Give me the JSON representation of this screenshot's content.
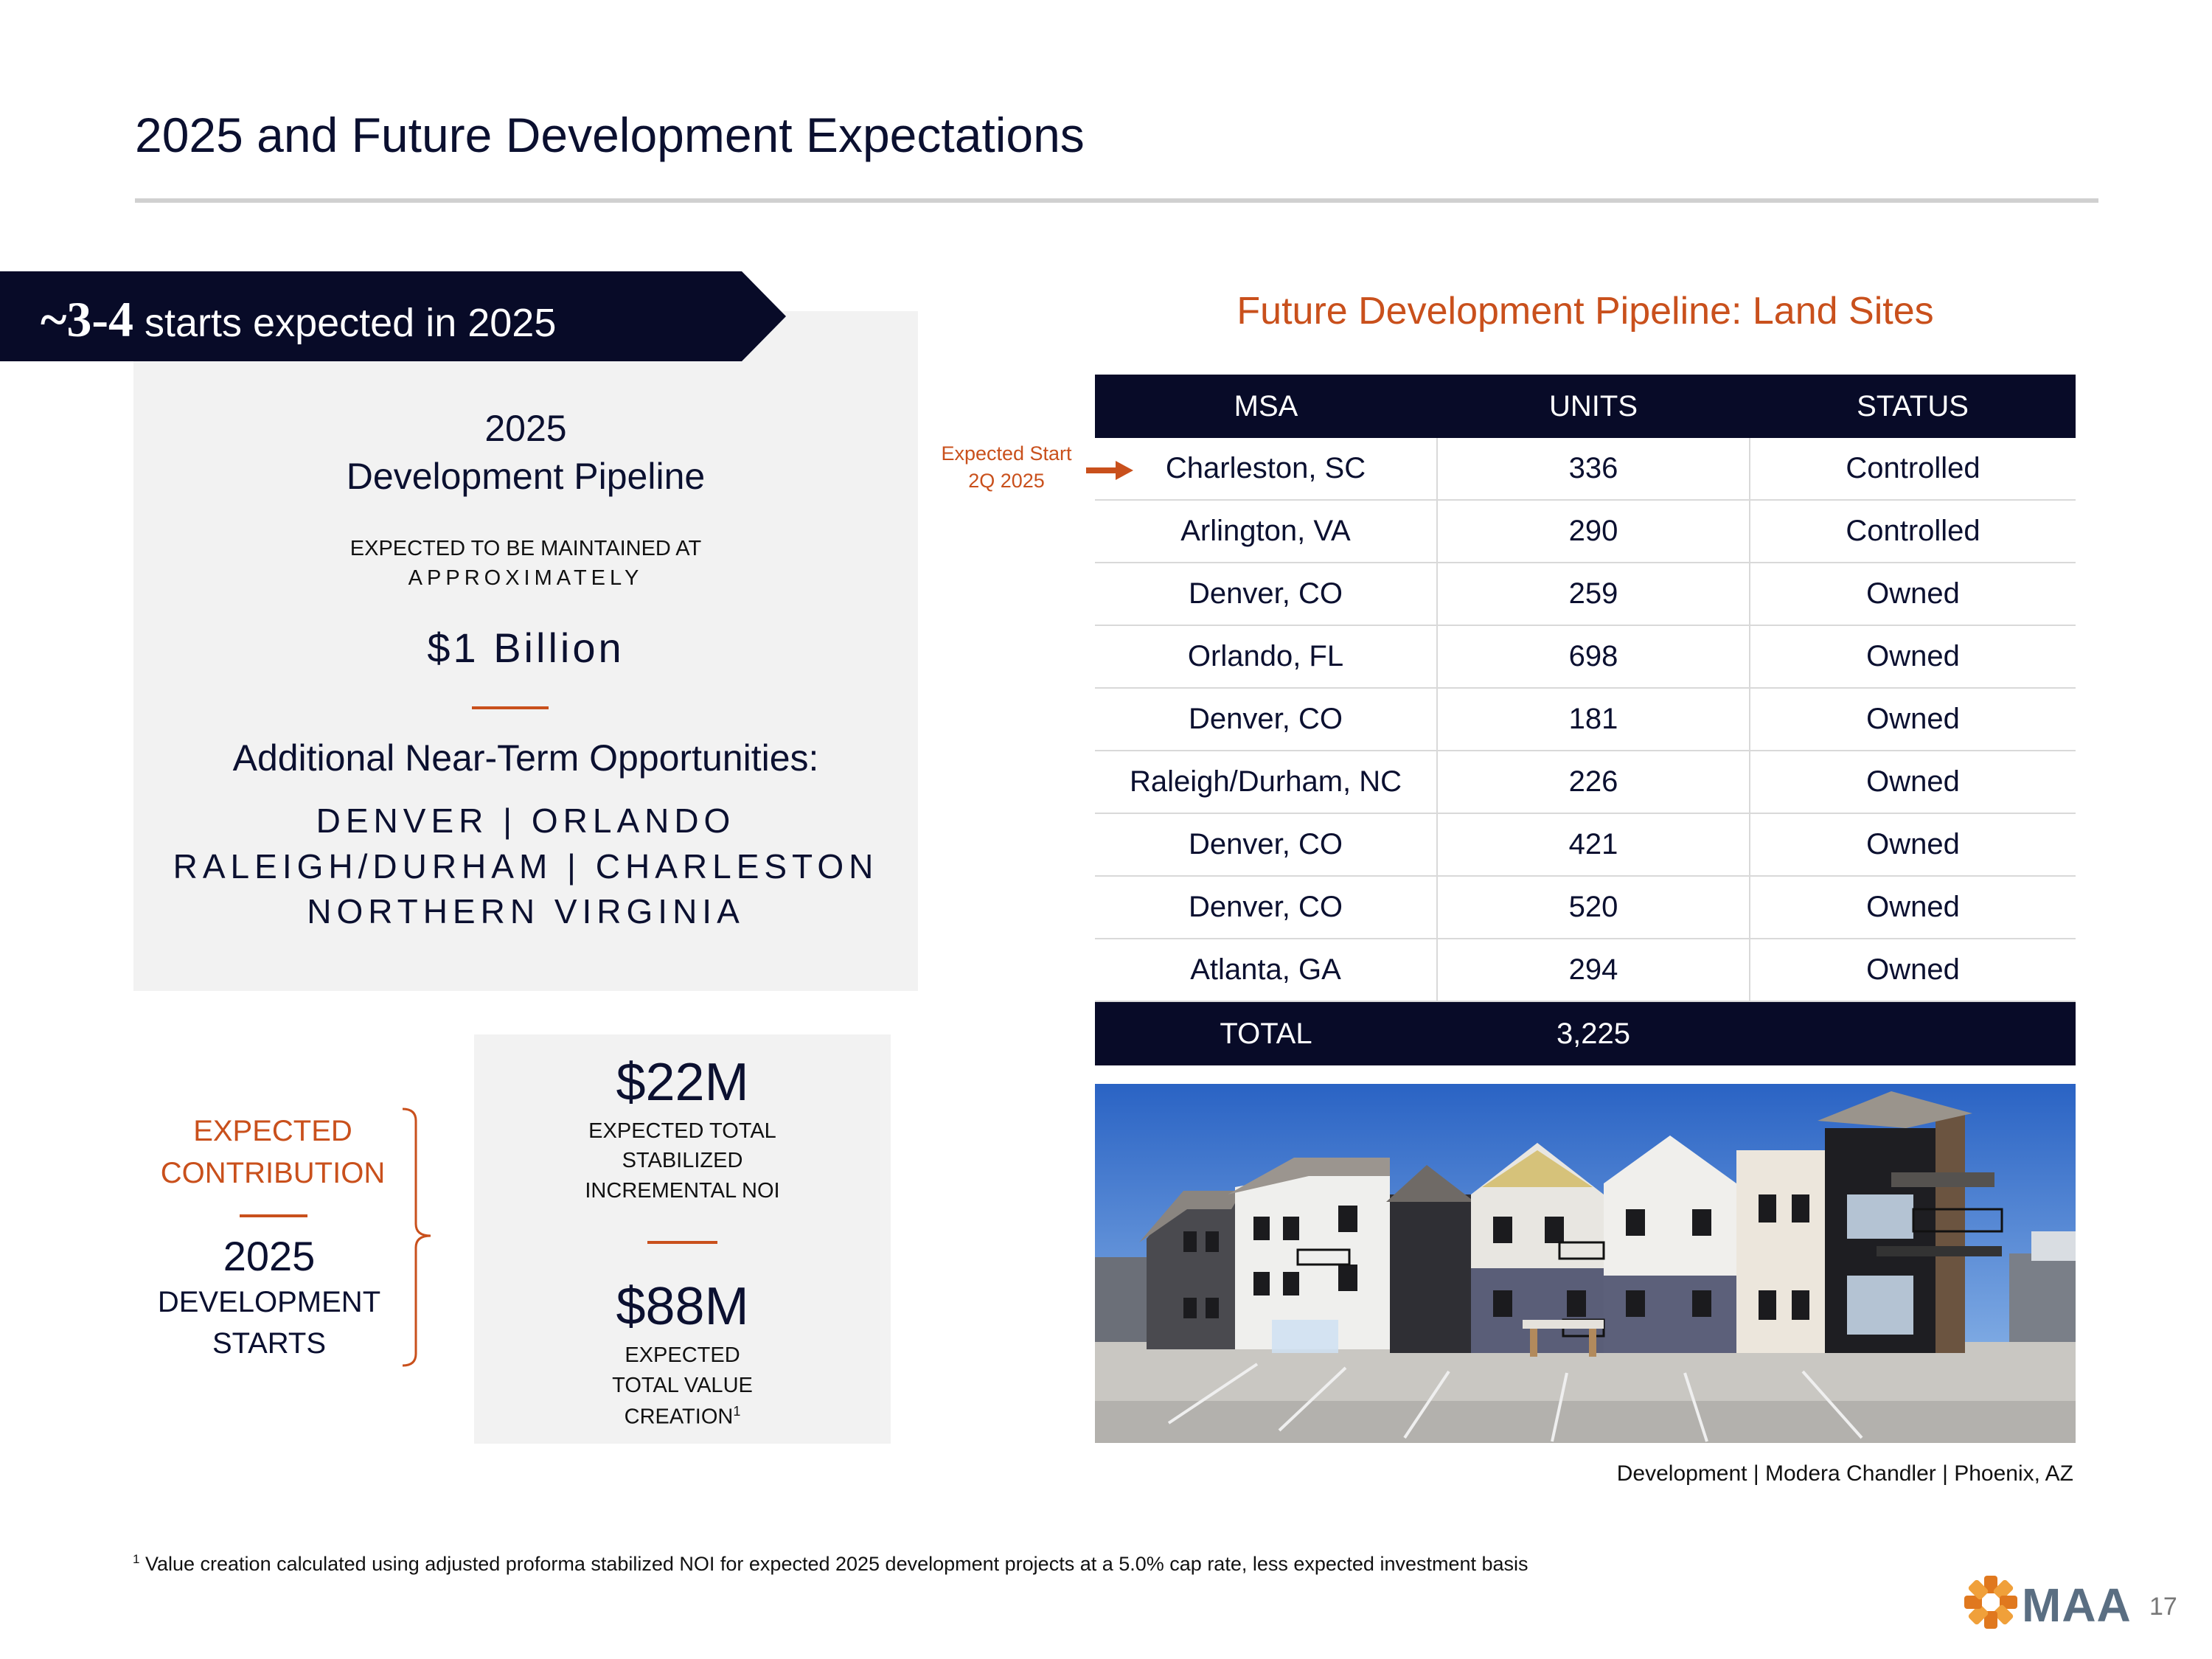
{
  "slide": {
    "title": "2025 and Future Development Expectations",
    "page_number": "17"
  },
  "banner": {
    "number": "~3-4",
    "text": " starts expected in 2025"
  },
  "pipeline_panel": {
    "year": "2025",
    "title": "Development Pipeline",
    "subtitle_line1": "EXPECTED TO BE MAINTAINED AT",
    "subtitle_line2": "APPROXIMATELY",
    "amount": "$1 Billion",
    "opportunities_heading": "Additional Near-Term Opportunities:",
    "opportunities_lines": [
      "DENVER | ORLANDO",
      "RALEIGH/DURHAM | CHARLESTON",
      "NORTHERN VIRGINIA"
    ]
  },
  "contribution": {
    "line1": "EXPECTED",
    "line2": "CONTRIBUTION",
    "year": "2025",
    "label_line1": "DEVELOPMENT",
    "label_line2": "STARTS"
  },
  "metrics": {
    "noi_value": "$22M",
    "noi_label_lines": [
      "EXPECTED TOTAL",
      "STABILIZED",
      "INCREMENTAL NOI"
    ],
    "value_creation_value": "$88M",
    "value_creation_label_lines": [
      "EXPECTED",
      "TOTAL VALUE",
      "CREATION"
    ],
    "value_creation_footnote_marker": "1"
  },
  "land_sites": {
    "title": "Future Development Pipeline: Land Sites",
    "columns": [
      "MSA",
      "UNITS",
      "STATUS"
    ],
    "rows": [
      {
        "msa": "Charleston, SC",
        "units": "336",
        "status": "Controlled"
      },
      {
        "msa": "Arlington, VA",
        "units": "290",
        "status": "Controlled"
      },
      {
        "msa": "Denver, CO",
        "units": "259",
        "status": "Owned"
      },
      {
        "msa": "Orlando, FL",
        "units": "698",
        "status": "Owned"
      },
      {
        "msa": "Denver, CO",
        "units": "181",
        "status": "Owned"
      },
      {
        "msa": "Raleigh/Durham, NC",
        "units": "226",
        "status": "Owned"
      },
      {
        "msa": "Denver, CO",
        "units": "421",
        "status": "Owned"
      },
      {
        "msa": "Denver, CO",
        "units": "520",
        "status": "Owned"
      },
      {
        "msa": "Atlanta, GA",
        "units": "294",
        "status": "Owned"
      }
    ],
    "total_label": "TOTAL",
    "total_units": "3,225"
  },
  "annotation": {
    "line1": "Expected Start",
    "line2": "2Q 2025"
  },
  "image": {
    "caption": "Development | Modera Chandler | Phoenix, AZ"
  },
  "footnote": {
    "marker": "1",
    "text": " Value creation calculated using adjusted proforma stabilized NOI for expected 2025 development projects at a 5.0% cap rate, less expected investment basis"
  },
  "logo": {
    "text": "MAA"
  },
  "colors": {
    "navy": "#080b28",
    "accent_orange": "#c9501c",
    "panel_gray": "#f2f2f2"
  }
}
